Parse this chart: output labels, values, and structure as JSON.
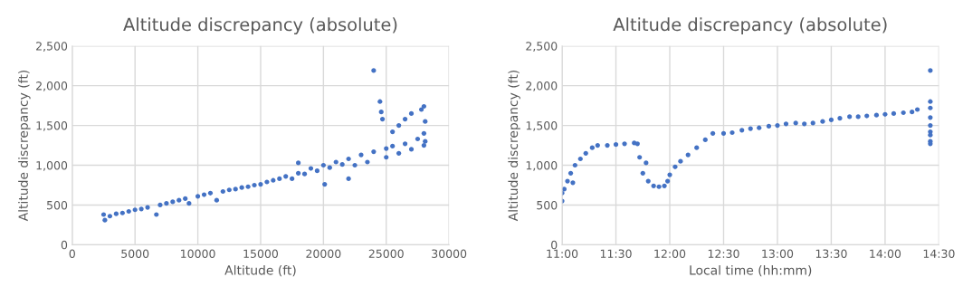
{
  "chart_data": [
    {
      "type": "scatter",
      "title": "Altitude discrepancy (absolute)",
      "xlabel": "Altitude (ft)",
      "ylabel": "Altitude discrepancy (ft)",
      "marker": "circle",
      "grid": true,
      "xlim": [
        0,
        30000
      ],
      "xticks": [
        0,
        5000,
        10000,
        15000,
        20000,
        25000,
        30000
      ],
      "ylim": [
        0,
        2500
      ],
      "yticks": [
        0,
        500,
        {
          "value": 1000,
          "label": "1,000"
        },
        {
          "value": 1500,
          "label": "1,500"
        },
        {
          "value": 2000,
          "label": "2,000"
        },
        {
          "value": 2500,
          "label": "2,500"
        }
      ],
      "series": [
        {
          "color": "#4472c4",
          "x": [
            2500,
            2600,
            3000,
            3500,
            4000,
            4500,
            5000,
            5500,
            6000,
            6700,
            7000,
            7500,
            8000,
            8500,
            9000,
            9300,
            10000,
            10500,
            11000,
            11500,
            12000,
            12500,
            13000,
            13500,
            14000,
            14500,
            15000,
            15500,
            16000,
            16500,
            17000,
            17500,
            18000,
            18000,
            18500,
            19000,
            19500,
            20000,
            20100,
            20500,
            21000,
            21500,
            22000,
            22000,
            22500,
            23000,
            23500,
            24000,
            24000,
            24500,
            24600,
            24700,
            25000,
            25000,
            25500,
            25500,
            26000,
            26000,
            26500,
            26500,
            27000,
            27000,
            27500,
            27800,
            28000,
            28000,
            28000,
            28100,
            28100
          ],
          "values": [
            380,
            310,
            360,
            390,
            400,
            420,
            440,
            450,
            470,
            380,
            500,
            520,
            540,
            560,
            580,
            520,
            610,
            630,
            650,
            560,
            670,
            690,
            700,
            720,
            730,
            750,
            760,
            790,
            810,
            830,
            860,
            830,
            900,
            1030,
            890,
            960,
            930,
            1000,
            760,
            970,
            1040,
            1010,
            830,
            1080,
            1000,
            1130,
            1040,
            1170,
            2190,
            1800,
            1670,
            1580,
            1210,
            1100,
            1420,
            1240,
            1150,
            1500,
            1270,
            1580,
            1200,
            1650,
            1330,
            1700,
            1250,
            1400,
            1740,
            1550,
            1300
          ]
        }
      ]
    },
    {
      "type": "scatter",
      "title": "Altitude discrepancy (absolute)",
      "xlabel": "Local time (hh:mm)",
      "ylabel": "Altitude discrepancy (ft)",
      "marker": "circle",
      "grid": true,
      "xlim": [
        11,
        14.5
      ],
      "xticks": [
        {
          "value": 11,
          "label": "11:00"
        },
        {
          "value": 11.5,
          "label": "11:30"
        },
        {
          "value": 12,
          "label": "12:00"
        },
        {
          "value": 12.5,
          "label": "12:30"
        },
        {
          "value": 13,
          "label": "13:00"
        },
        {
          "value": 13.5,
          "label": "13:30"
        },
        {
          "value": 14,
          "label": "14:00"
        },
        {
          "value": 14.5,
          "label": "14:30"
        }
      ],
      "ylim": [
        0,
        2500
      ],
      "yticks": [
        0,
        500,
        {
          "value": 1000,
          "label": "1,000"
        },
        {
          "value": 1500,
          "label": "1,500"
        },
        {
          "value": 2000,
          "label": "2,000"
        },
        {
          "value": 2500,
          "label": "2,500"
        }
      ],
      "series": [
        {
          "color": "#4472c4",
          "x": [
            11.0,
            11.0,
            11.02,
            11.05,
            11.08,
            11.1,
            11.12,
            11.17,
            11.22,
            11.28,
            11.33,
            11.42,
            11.5,
            11.58,
            11.67,
            11.7,
            11.72,
            11.75,
            11.78,
            11.8,
            11.85,
            11.9,
            11.95,
            11.98,
            12.0,
            12.05,
            12.1,
            12.17,
            12.25,
            12.33,
            12.4,
            12.5,
            12.58,
            12.67,
            12.75,
            12.83,
            12.92,
            13.0,
            13.08,
            13.17,
            13.25,
            13.33,
            13.42,
            13.5,
            13.58,
            13.67,
            13.75,
            13.83,
            13.92,
            14.0,
            14.08,
            14.17,
            14.25,
            14.3,
            14.42,
            14.42,
            14.42,
            14.42,
            14.42,
            14.42,
            14.42,
            14.42,
            14.42
          ],
          "values": [
            550,
            650,
            700,
            800,
            900,
            780,
            1000,
            1080,
            1150,
            1220,
            1250,
            1250,
            1260,
            1270,
            1280,
            1270,
            1100,
            900,
            1030,
            800,
            740,
            730,
            740,
            800,
            880,
            980,
            1050,
            1130,
            1220,
            1320,
            1400,
            1400,
            1410,
            1440,
            1460,
            1470,
            1490,
            1500,
            1520,
            1530,
            1520,
            1530,
            1550,
            1570,
            1590,
            1610,
            1610,
            1620,
            1630,
            1640,
            1650,
            1660,
            1670,
            1700,
            1720,
            1800,
            2190,
            1600,
            1500,
            1420,
            1380,
            1300,
            1270
          ]
        }
      ]
    }
  ]
}
